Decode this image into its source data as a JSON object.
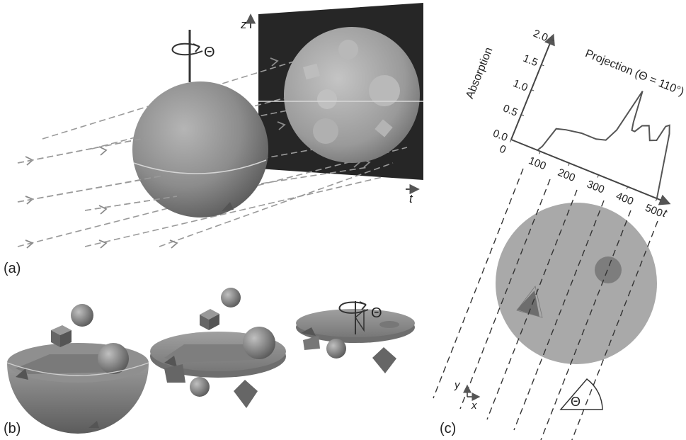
{
  "panels": {
    "a": "(a)",
    "b": "(b)",
    "c": "(c)"
  },
  "panel_a": {
    "rotation_symbol": "Θ",
    "detector_axis_z": "z",
    "detector_axis_t": "t"
  },
  "panel_b": {
    "rotation_symbol": "Θ"
  },
  "panel_c": {
    "title": "Projection (Θ = 110°)",
    "ylabel": "Absorption",
    "xlabel": "t",
    "yticks": [
      "0.0",
      "0.5",
      "1.0",
      "1.5",
      "2.0"
    ],
    "xticks": [
      "0",
      "100",
      "200",
      "300",
      "400",
      "500"
    ],
    "coord_y": "y",
    "coord_x": "x",
    "angle_symbol": "Θ"
  },
  "colors": {
    "object_gray": "#8a8a8a",
    "detector_bg": "#262626",
    "ray": "#9a9a9a",
    "phantom_fill": "#a9a9a9"
  },
  "chart_data": {
    "type": "line",
    "title": "Projection (Θ = 110°)",
    "xlabel": "t",
    "ylabel": "Absorption",
    "xlim": [
      0,
      500
    ],
    "ylim": [
      0,
      2.0
    ],
    "series": [
      {
        "x": [
          90,
          100,
          120,
          150,
          200,
          250,
          280,
          300,
          330,
          340,
          345,
          355,
          370,
          390,
          410,
          430,
          440,
          450,
          460,
          470,
          480,
          490,
          500
        ],
        "values": [
          0.0,
          0.1,
          0.5,
          0.55,
          0.6,
          0.6,
          0.65,
          0.9,
          1.75,
          1.15,
          1.0,
          1.0,
          1.15,
          1.2,
          0.95,
          1.0,
          1.3,
          1.35,
          1.2,
          0.9,
          0.6,
          0.3,
          0.0
        ]
      }
    ]
  }
}
